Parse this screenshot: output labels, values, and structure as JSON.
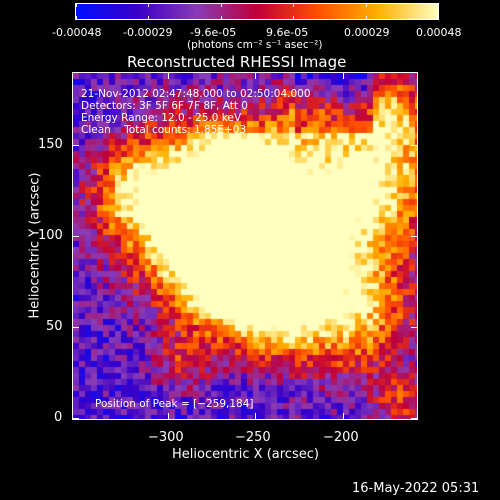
{
  "colorbar": {
    "tick_labels": [
      "-0.00048",
      "-0.00029",
      "-9.6e-05",
      "9.6e-05",
      "0.00029",
      "0.00048"
    ],
    "unit_label": "(photons cm⁻² s⁻¹ asec⁻²)",
    "colors": [
      "#0010ff",
      "#3a00c8",
      "#8a3cb8",
      "#c0003a",
      "#ff5000",
      "#ffb000",
      "#ffffc0"
    ]
  },
  "plot": {
    "title": "Reconstructed RHESSI Image",
    "xlabel": "Heliocentric X (arcsec)",
    "ylabel": "Heliocentric Y (arcsec)",
    "x_ticks": [
      "−300",
      "−250",
      "−200"
    ],
    "y_ticks": [
      "0",
      "50",
      "100",
      "150"
    ],
    "xlim": [
      -342,
      -196
    ],
    "ylim": [
      -3,
      175
    ],
    "info_lines": [
      "21-Nov-2012 02:47:48.000 to 02:50:04.000",
      "Detectors: 3F 5F 6F 7F 8F, Att 0",
      "Energy Range: 12.0 - 25.0 keV",
      "Clean    Total counts: 1.85E+03"
    ],
    "peak_text": "Position of Peak = [−259,184]"
  },
  "footer": {
    "timestamp": "16-May-2022 05:31"
  }
}
